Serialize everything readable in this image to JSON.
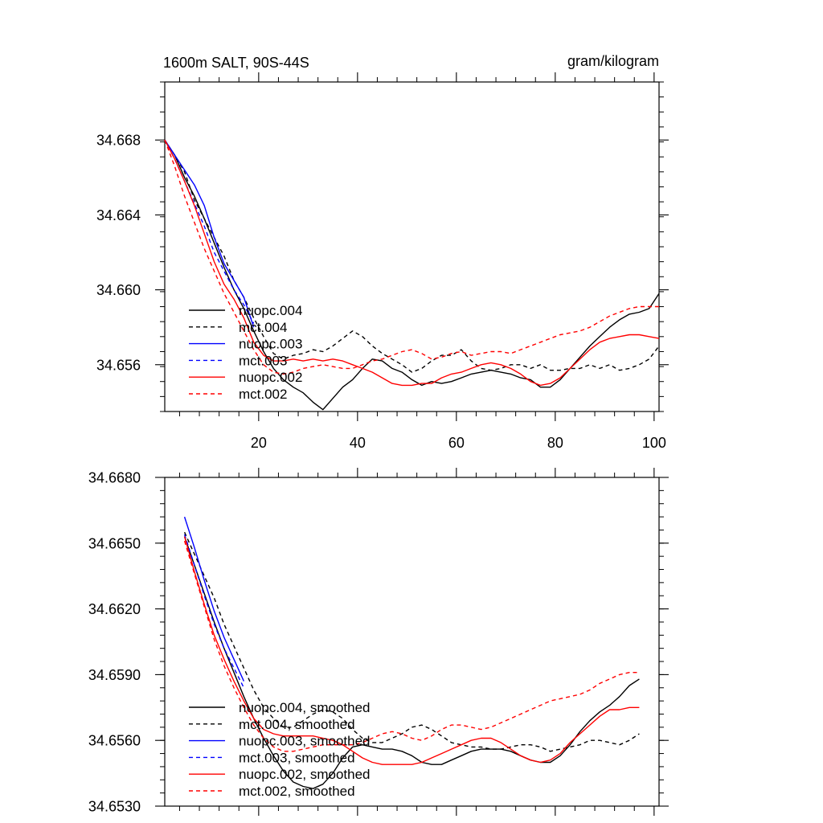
{
  "chart_data": [
    {
      "type": "line",
      "title_left": "1600m SALT, 90S-44S",
      "title_right": "gram/kilogram",
      "xlim": [
        1,
        101
      ],
      "ylim": [
        34.6535,
        34.6711
      ],
      "xticks": [
        "20",
        "40",
        "60",
        "80",
        "100"
      ],
      "yticks": [
        "34.656",
        "34.660",
        "34.664",
        "34.668"
      ],
      "series": [
        {
          "name": "nuopc.004",
          "color": "#000000",
          "dash": false,
          "x": [
            1,
            3,
            5,
            7,
            9,
            11,
            13,
            15,
            17,
            19,
            21,
            23,
            25,
            27,
            29,
            31,
            33,
            35,
            37,
            39,
            41,
            43,
            45,
            47,
            49,
            51,
            53,
            55,
            57,
            59,
            61,
            63,
            65,
            67,
            69,
            71,
            73,
            75,
            77,
            79,
            81,
            83,
            85,
            87,
            89,
            91,
            93,
            95,
            97,
            99,
            101
          ],
          "values": [
            34.668,
            34.6672,
            34.666,
            34.665,
            34.6638,
            34.6625,
            34.6612,
            34.66,
            34.659,
            34.6578,
            34.6567,
            34.6558,
            34.6552,
            34.6548,
            34.6545,
            34.654,
            34.6536,
            34.6542,
            34.6548,
            34.6552,
            34.6558,
            34.6563,
            34.6562,
            34.6558,
            34.6556,
            34.6552,
            34.6549,
            34.6551,
            34.655,
            34.6551,
            34.6553,
            34.6555,
            34.6556,
            34.6557,
            34.6556,
            34.6555,
            34.6553,
            34.6552,
            34.6548,
            34.6548,
            34.6552,
            34.6558,
            34.6564,
            34.657,
            34.6575,
            34.658,
            34.6584,
            34.6587,
            34.6588,
            34.659,
            34.6598
          ]
        },
        {
          "name": "mct.004",
          "color": "#000000",
          "dash": true,
          "x": [
            1,
            3,
            5,
            7,
            9,
            11,
            13,
            15,
            17,
            19,
            21,
            23,
            25,
            27,
            29,
            31,
            33,
            35,
            37,
            39,
            41,
            43,
            45,
            47,
            49,
            51,
            53,
            55,
            57,
            59,
            61,
            63,
            65,
            67,
            69,
            71,
            73,
            75,
            77,
            79,
            81,
            83,
            85,
            87,
            89,
            91,
            93,
            95,
            97,
            99,
            101
          ],
          "values": [
            34.668,
            34.6672,
            34.6663,
            34.6648,
            34.6638,
            34.6628,
            34.6618,
            34.6605,
            34.6596,
            34.6585,
            34.6575,
            34.6566,
            34.6563,
            34.6565,
            34.6566,
            34.6568,
            34.6567,
            34.657,
            34.6574,
            34.6578,
            34.6575,
            34.657,
            34.6566,
            34.6563,
            34.656,
            34.6556,
            34.6558,
            34.6562,
            34.6565,
            34.6565,
            34.6568,
            34.6562,
            34.6558,
            34.6557,
            34.6558,
            34.656,
            34.656,
            34.6558,
            34.656,
            34.6557,
            34.6557,
            34.6558,
            34.6558,
            34.656,
            34.6558,
            34.656,
            34.6557,
            34.6558,
            34.656,
            34.6563,
            34.657
          ]
        },
        {
          "name": "nuopc.003",
          "color": "#0000ff",
          "dash": false,
          "x": [
            1,
            3,
            5,
            7,
            9,
            11,
            13,
            15,
            17,
            19
          ],
          "values": [
            34.668,
            34.6672,
            34.6664,
            34.6656,
            34.6645,
            34.6628,
            34.6614,
            34.6605,
            34.6596,
            34.658
          ]
        },
        {
          "name": "mct.003",
          "color": "#0000ff",
          "dash": true,
          "x": [
            1,
            3,
            5,
            7,
            9,
            11,
            13,
            15,
            17,
            19
          ],
          "values": [
            34.668,
            34.667,
            34.6658,
            34.6646,
            34.6634,
            34.662,
            34.661,
            34.66,
            34.6592,
            34.6582
          ]
        },
        {
          "name": "nuopc.002",
          "color": "#ff0000",
          "dash": false,
          "x": [
            1,
            3,
            5,
            7,
            9,
            11,
            13,
            15,
            17,
            19,
            21,
            23,
            25,
            27,
            29,
            31,
            33,
            35,
            37,
            39,
            41,
            43,
            45,
            47,
            49,
            51,
            53,
            55,
            57,
            59,
            61,
            63,
            65,
            67,
            69,
            71,
            73,
            75,
            77,
            79,
            81,
            83,
            85,
            87,
            89,
            91,
            93,
            95,
            97,
            99,
            101
          ],
          "values": [
            34.668,
            34.667,
            34.6658,
            34.6645,
            34.663,
            34.6615,
            34.6603,
            34.6595,
            34.6585,
            34.6572,
            34.6565,
            34.6562,
            34.6562,
            34.6563,
            34.6562,
            34.6563,
            34.6562,
            34.6563,
            34.6562,
            34.656,
            34.6558,
            34.6556,
            34.6553,
            34.655,
            34.6549,
            34.6549,
            34.655,
            34.655,
            34.6553,
            34.6555,
            34.6556,
            34.6558,
            34.656,
            34.6561,
            34.656,
            34.6558,
            34.6555,
            34.6551,
            34.6549,
            34.655,
            34.6553,
            34.6558,
            34.6563,
            34.6568,
            34.6572,
            34.6574,
            34.6575,
            34.6576,
            34.6576,
            34.6575,
            34.6574
          ]
        },
        {
          "name": "mct.002",
          "color": "#ff0000",
          "dash": true,
          "x": [
            1,
            3,
            5,
            7,
            9,
            11,
            13,
            15,
            17,
            19,
            21,
            23,
            25,
            27,
            29,
            31,
            33,
            35,
            37,
            39,
            41,
            43,
            45,
            47,
            49,
            51,
            53,
            55,
            57,
            59,
            61,
            63,
            65,
            67,
            69,
            71,
            73,
            75,
            77,
            79,
            81,
            83,
            85,
            87,
            89,
            91,
            93,
            95,
            97,
            99,
            101
          ],
          "values": [
            34.668,
            34.6666,
            34.665,
            34.6636,
            34.6622,
            34.661,
            34.6598,
            34.6588,
            34.6578,
            34.6568,
            34.656,
            34.6556,
            34.6555,
            34.6556,
            34.6558,
            34.6559,
            34.656,
            34.6559,
            34.6558,
            34.6558,
            34.656,
            34.6562,
            34.6563,
            34.6565,
            34.6567,
            34.6568,
            34.6566,
            34.6563,
            34.6564,
            34.6566,
            34.6567,
            34.6565,
            34.6566,
            34.6567,
            34.6567,
            34.6566,
            34.6568,
            34.657,
            34.6572,
            34.6574,
            34.6576,
            34.6577,
            34.6578,
            34.658,
            34.6583,
            34.6586,
            34.6588,
            34.659,
            34.6591,
            34.6591,
            34.6591
          ]
        }
      ]
    },
    {
      "type": "line",
      "xlim": [
        1,
        101
      ],
      "ylim": [
        34.653,
        34.668
      ],
      "yticks": [
        "34.6530",
        "34.6560",
        "34.6590",
        "34.6620",
        "34.6650",
        "34.6680"
      ],
      "series": [
        {
          "name": "nuopc.004, smoothed",
          "color": "#000000",
          "dash": false,
          "x": [
            5,
            7,
            9,
            11,
            13,
            15,
            17,
            19,
            21,
            23,
            25,
            27,
            29,
            31,
            33,
            35,
            37,
            39,
            41,
            43,
            45,
            47,
            49,
            51,
            53,
            55,
            57,
            59,
            61,
            63,
            65,
            67,
            69,
            71,
            73,
            75,
            77,
            79,
            81,
            83,
            85,
            87,
            89,
            91,
            93,
            95,
            97
          ],
          "values": [
            34.6653,
            34.664,
            34.6627,
            34.6614,
            34.6602,
            34.6591,
            34.658,
            34.657,
            34.6561,
            34.6553,
            34.6546,
            34.6541,
            34.6539,
            34.6538,
            34.654,
            34.6545,
            34.6552,
            34.6557,
            34.6558,
            34.6557,
            34.6556,
            34.6556,
            34.6555,
            34.6553,
            34.655,
            34.6549,
            34.6549,
            34.6551,
            34.6553,
            34.6555,
            34.6556,
            34.6556,
            34.6556,
            34.6555,
            34.6553,
            34.6551,
            34.655,
            34.655,
            34.6553,
            34.6558,
            34.6564,
            34.6569,
            34.6573,
            34.6576,
            34.658,
            34.6585,
            34.6588
          ]
        },
        {
          "name": "mct.004, smoothed",
          "color": "#000000",
          "dash": true,
          "x": [
            5,
            7,
            9,
            11,
            13,
            15,
            17,
            19,
            21,
            23,
            25,
            27,
            29,
            31,
            33,
            35,
            37,
            39,
            41,
            43,
            45,
            47,
            49,
            51,
            53,
            55,
            57,
            59,
            61,
            63,
            65,
            67,
            69,
            71,
            73,
            75,
            77,
            79,
            81,
            83,
            85,
            87,
            89,
            91,
            93,
            95,
            97
          ],
          "values": [
            34.6655,
            34.6645,
            34.6635,
            34.6625,
            34.6613,
            34.6603,
            34.6593,
            34.6583,
            34.6575,
            34.657,
            34.6566,
            34.6566,
            34.6569,
            34.6572,
            34.6574,
            34.6573,
            34.657,
            34.6565,
            34.6561,
            34.6559,
            34.6559,
            34.6561,
            34.6563,
            34.6566,
            34.6567,
            34.6565,
            34.6562,
            34.6559,
            34.6558,
            34.6557,
            34.6557,
            34.6556,
            34.6556,
            34.6557,
            34.6558,
            34.6558,
            34.6557,
            34.6555,
            34.6556,
            34.6557,
            34.6558,
            34.656,
            34.656,
            34.6559,
            34.6558,
            34.656,
            34.6563
          ]
        },
        {
          "name": "nuopc.003, smoothed",
          "color": "#0000ff",
          "dash": false,
          "x": [
            5,
            7,
            9,
            11,
            13,
            15,
            17
          ],
          "values": [
            34.6662,
            34.6648,
            34.6633,
            34.6619,
            34.6607,
            34.6597,
            34.6587
          ]
        },
        {
          "name": "mct.003, smoothed",
          "color": "#0000ff",
          "dash": true,
          "x": [
            5,
            7,
            9,
            11,
            13,
            15,
            17
          ],
          "values": [
            34.6654,
            34.664,
            34.6626,
            34.6613,
            34.6602,
            34.6593,
            34.6584
          ]
        },
        {
          "name": "nuopc.002, smoothed",
          "color": "#ff0000",
          "dash": false,
          "x": [
            5,
            7,
            9,
            11,
            13,
            15,
            17,
            19,
            21,
            23,
            25,
            27,
            29,
            31,
            33,
            35,
            37,
            39,
            41,
            43,
            45,
            47,
            49,
            51,
            53,
            55,
            57,
            59,
            61,
            63,
            65,
            67,
            69,
            71,
            73,
            75,
            77,
            79,
            81,
            83,
            85,
            87,
            89,
            91,
            93,
            95,
            97
          ],
          "values": [
            34.6653,
            34.6637,
            34.6622,
            34.6608,
            34.6597,
            34.6587,
            34.6578,
            34.657,
            34.6565,
            34.6563,
            34.6562,
            34.6562,
            34.6562,
            34.6562,
            34.6561,
            34.656,
            34.6558,
            34.6555,
            34.6552,
            34.655,
            34.6549,
            34.6549,
            34.6549,
            34.6549,
            34.655,
            34.6552,
            34.6554,
            34.6556,
            34.6558,
            34.656,
            34.6561,
            34.6561,
            34.6559,
            34.6556,
            34.6553,
            34.6551,
            34.655,
            34.6551,
            34.6554,
            34.6559,
            34.6563,
            34.6567,
            34.6571,
            34.6574,
            34.6574,
            34.6575,
            34.6575
          ]
        },
        {
          "name": "mct.002, smoothed",
          "color": "#ff0000",
          "dash": true,
          "x": [
            5,
            7,
            9,
            11,
            13,
            15,
            17,
            19,
            21,
            23,
            25,
            27,
            29,
            31,
            33,
            35,
            37,
            39,
            41,
            43,
            45,
            47,
            49,
            51,
            53,
            55,
            57,
            59,
            61,
            63,
            65,
            67,
            69,
            71,
            73,
            75,
            77,
            79,
            81,
            83,
            85,
            87,
            89,
            91,
            93,
            95,
            97
          ],
          "values": [
            34.6651,
            34.6636,
            34.6621,
            34.6606,
            34.6594,
            34.6584,
            34.6575,
            34.6567,
            34.6561,
            34.6557,
            34.6555,
            34.6555,
            34.6556,
            34.6557,
            34.6558,
            34.6558,
            34.6558,
            34.6558,
            34.6559,
            34.6561,
            34.6563,
            34.6564,
            34.6563,
            34.6561,
            34.656,
            34.6562,
            34.6565,
            34.6567,
            34.6567,
            34.6566,
            34.6565,
            34.6566,
            34.6568,
            34.657,
            34.6572,
            34.6574,
            34.6576,
            34.6578,
            34.6579,
            34.658,
            34.6581,
            34.6583,
            34.6586,
            34.6588,
            34.659,
            34.6591,
            34.6591
          ]
        }
      ]
    }
  ]
}
